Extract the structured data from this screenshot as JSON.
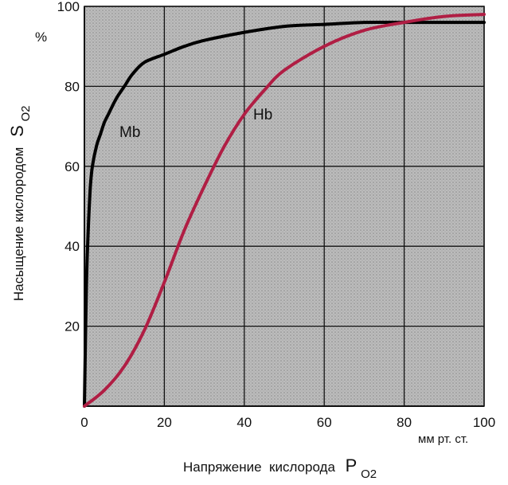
{
  "chart_data": {
    "type": "line",
    "xlabel": "Напряжение  кислорода",
    "xlabel_symbol": "P",
    "xlabel_sub": "O2",
    "xunit": "мм рт. ст.",
    "ylabel": "Насыщение кислородом",
    "ylabel_symbol": "S",
    "ylabel_sub": "O2",
    "yunit": "%",
    "xlim": [
      0,
      100
    ],
    "ylim": [
      0,
      100
    ],
    "xticks": [
      0,
      20,
      40,
      60,
      80,
      100
    ],
    "yticks": [
      20,
      40,
      60,
      80,
      100
    ],
    "grid": true,
    "series": [
      {
        "name": "Mb",
        "color": "#000000",
        "x": [
          0,
          0.5,
          1,
          1.5,
          2,
          3,
          4,
          5,
          6,
          8,
          10,
          12,
          15,
          20,
          25,
          30,
          40,
          50,
          60,
          70,
          80,
          90,
          100
        ],
        "y": [
          0,
          30,
          45,
          55,
          60,
          65,
          68,
          71,
          73,
          77,
          80,
          83,
          86,
          88,
          90,
          91.5,
          93.5,
          95,
          95.5,
          96,
          96,
          96,
          96
        ]
      },
      {
        "name": "Hb",
        "color": "#b01e44",
        "x": [
          0,
          5,
          10,
          15,
          20,
          25,
          30,
          35,
          40,
          45,
          50,
          60,
          70,
          80,
          90,
          100
        ],
        "y": [
          0,
          4,
          10,
          19,
          31,
          44,
          55,
          65,
          73,
          79,
          84,
          90,
          94,
          96,
          97.5,
          98
        ]
      }
    ]
  }
}
